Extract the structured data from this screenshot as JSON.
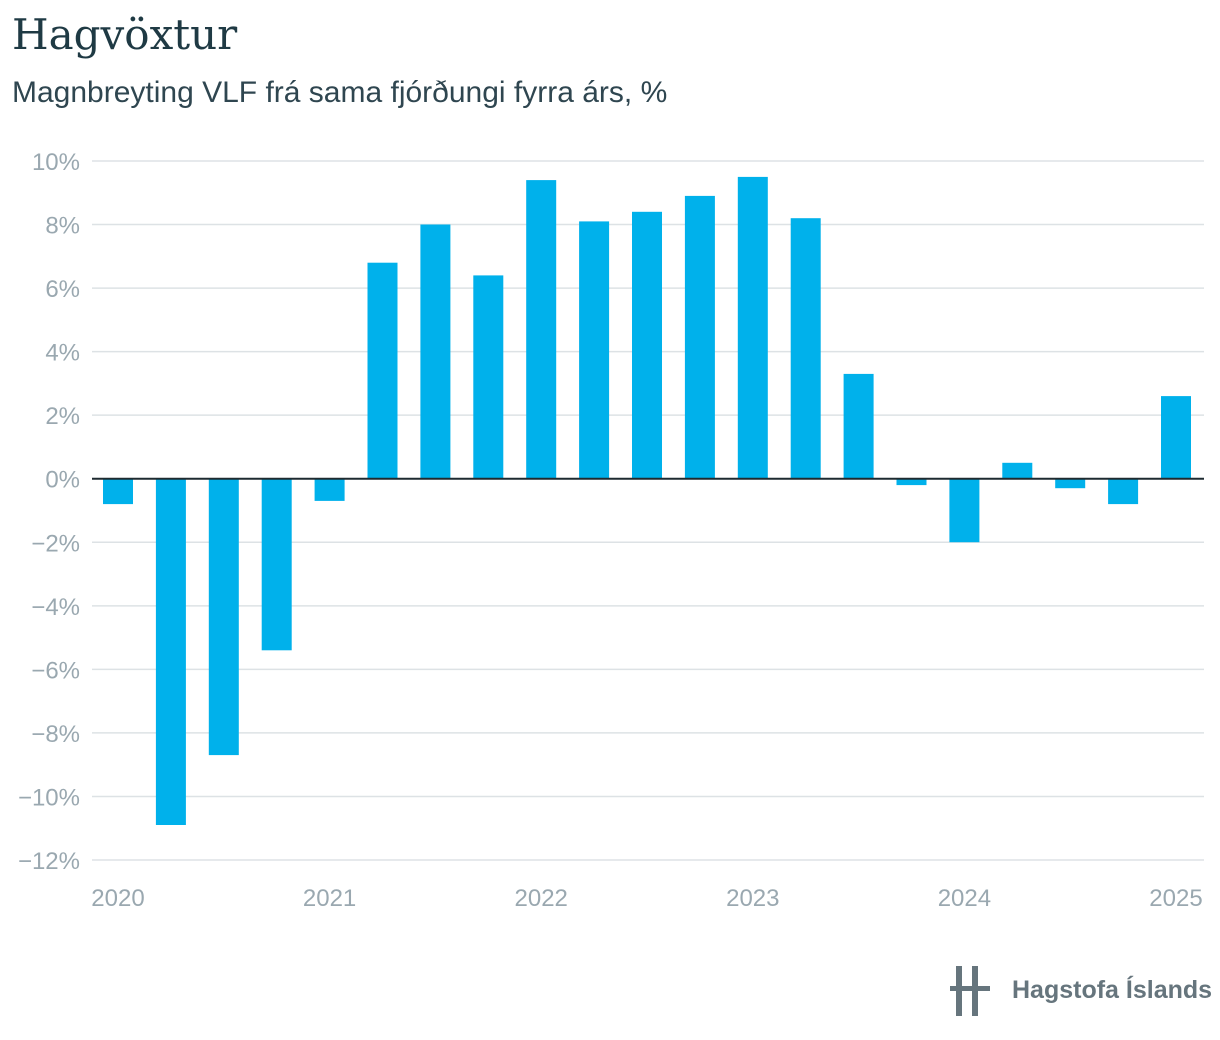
{
  "header": {
    "title": "Hagvöxtur",
    "subtitle": "Magnbreyting VLF frá sama fjórðungi fyrra árs, %"
  },
  "footer": {
    "logo_text": "Hagstofa Íslands",
    "logo_icon": "hagstofa-logo-icon"
  },
  "colors": {
    "bar": "#00b1eb",
    "grid": "#dde2e5",
    "zero_line": "#1e2a30",
    "tick_text": "#9aa8b0",
    "title": "#1f3a44",
    "logo": "#66757d"
  },
  "chart_data": {
    "type": "bar",
    "title": "Hagvöxtur",
    "subtitle": "Magnbreyting VLF frá sama fjórðungi fyrra árs, %",
    "xlabel": "",
    "ylabel": "",
    "ylim": [
      -12,
      10
    ],
    "y_ticks": [
      10,
      8,
      6,
      4,
      2,
      0,
      -2,
      -4,
      -6,
      -8,
      -10,
      -12
    ],
    "y_tick_labels": [
      "10%",
      "8%",
      "6%",
      "4%",
      "2%",
      "0%",
      "−2%",
      "−4%",
      "−6%",
      "−8%",
      "−10%",
      "−12%"
    ],
    "x_ticks": [
      "2020",
      "2021",
      "2022",
      "2023",
      "2024",
      "2025"
    ],
    "grid": true,
    "legend": "none",
    "categories": [
      "2020Q1",
      "2020Q2",
      "2020Q3",
      "2020Q4",
      "2021Q1",
      "2021Q2",
      "2021Q3",
      "2021Q4",
      "2022Q1",
      "2022Q2",
      "2022Q3",
      "2022Q4",
      "2023Q1",
      "2023Q2",
      "2023Q3",
      "2023Q4",
      "2024Q1",
      "2024Q2",
      "2024Q3",
      "2024Q4",
      "2025Q1"
    ],
    "values": [
      -0.8,
      -10.9,
      -8.7,
      -5.4,
      -0.7,
      6.8,
      8.0,
      6.4,
      9.4,
      8.1,
      8.4,
      8.9,
      9.5,
      8.2,
      3.3,
      -0.2,
      -2.0,
      0.5,
      -0.3,
      -0.8,
      2.6
    ]
  }
}
